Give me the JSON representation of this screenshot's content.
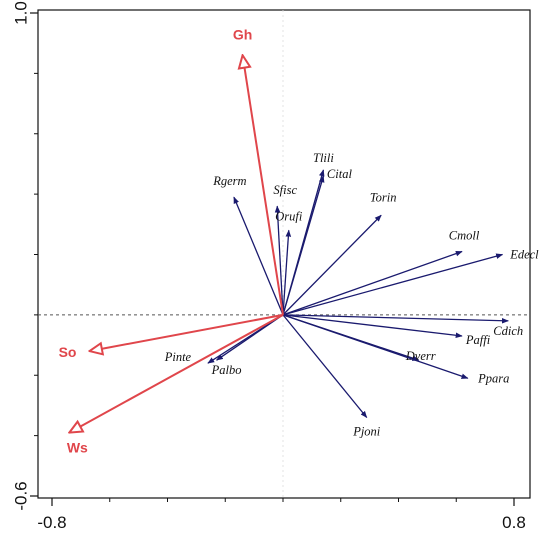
{
  "chart_data": {
    "type": "biplot",
    "xlim": [
      -0.8,
      0.8
    ],
    "ylim": [
      -0.6,
      1.0
    ],
    "x_ticks": [
      -0.8,
      0.8
    ],
    "y_ticks": [
      1.0,
      -0.6
    ],
    "x_tick_labels": [
      "-0.8",
      "0.8"
    ],
    "y_tick_labels": [
      "1.0",
      "-0.6"
    ],
    "grid": false,
    "reference_lines": {
      "horizontal_at_y": 0,
      "vertical_at_x": 0,
      "style": "dashed"
    },
    "colors": {
      "species": "#1a1a6e",
      "environment": "#e0464b",
      "axis": "#111111"
    },
    "environmental_vectors": [
      {
        "label": "Gh",
        "x": -0.14,
        "y": 0.86
      },
      {
        "label": "So",
        "x": -0.67,
        "y": -0.12
      },
      {
        "label": "Ws",
        "x": -0.74,
        "y": -0.39
      }
    ],
    "species_vectors": [
      {
        "label": "Tlili",
        "x": 0.14,
        "y": 0.48
      },
      {
        "label": "Cital",
        "x": 0.14,
        "y": 0.46
      },
      {
        "label": "Rgerm",
        "x": -0.17,
        "y": 0.39
      },
      {
        "label": "Sfisc",
        "x": -0.02,
        "y": 0.36
      },
      {
        "label": "Orufi",
        "x": 0.02,
        "y": 0.28
      },
      {
        "label": "Torin",
        "x": 0.34,
        "y": 0.33
      },
      {
        "label": "Cmoll",
        "x": 0.62,
        "y": 0.21
      },
      {
        "label": "Edecl",
        "x": 0.76,
        "y": 0.2
      },
      {
        "label": "Cdich",
        "x": 0.78,
        "y": -0.02
      },
      {
        "label": "Paffi",
        "x": 0.62,
        "y": -0.07
      },
      {
        "label": "Dverr",
        "x": 0.47,
        "y": -0.15
      },
      {
        "label": "Ppara",
        "x": 0.64,
        "y": -0.21
      },
      {
        "label": "Pjoni",
        "x": 0.29,
        "y": -0.34
      },
      {
        "label": "Pinte",
        "x": -0.26,
        "y": -0.16
      },
      {
        "label": "Palbo",
        "x": -0.23,
        "y": -0.15
      }
    ]
  }
}
